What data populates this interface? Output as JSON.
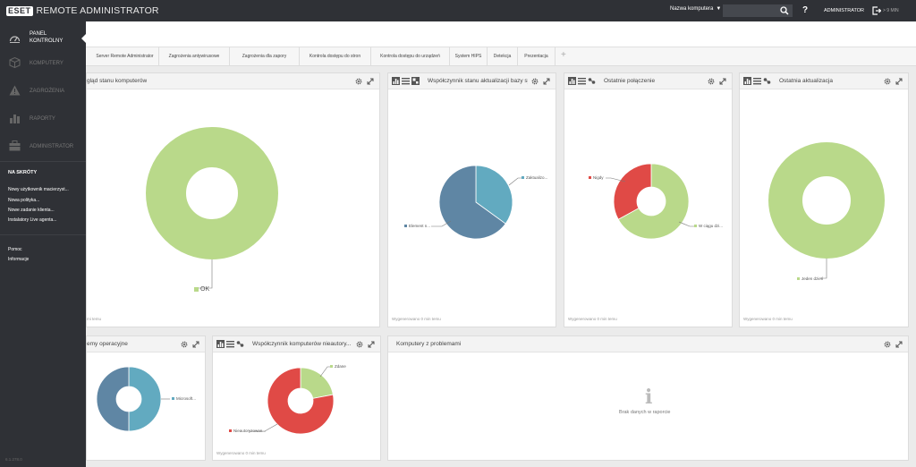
{
  "app": {
    "logo_text": "eset",
    "title": "REMOTE ADMINISTRATOR",
    "computer_select": "Nazwa komputera",
    "user": "ADMINISTRATOR",
    "logout_time": "> 9 MIN"
  },
  "sidebar": {
    "items": [
      {
        "label": "PANEL KONTROLNY"
      },
      {
        "label": "KOMPUTERY"
      },
      {
        "label": "ZAGROŻENIA"
      },
      {
        "label": "RAPORTY"
      },
      {
        "label": "ADMINISTRATOR"
      }
    ],
    "shortcuts_title": "NA SKRÓTY",
    "shortcuts": [
      "Nowy użytkownik macierzyst...",
      "Nowa polityka...",
      "Nowe zadanie klienta...",
      "Instalatory Live agenta..."
    ],
    "links": [
      "Pomoc",
      "Informacje"
    ],
    "version": "6.1.278.0"
  },
  "tabs": [
    "Server Remote Administrator",
    "Zagrożenia antywirusowe",
    "Zagrożenia dla zapory",
    "Kontrola dostępu do stron",
    "Kontrola dostępu do urządzeń",
    "System HIPS",
    "Detekcja",
    "Prezentacja"
  ],
  "panels": {
    "p1": {
      "title": "gląd stanu komputerów",
      "generated": "mi temu"
    },
    "p2": {
      "title": "Współczynnik stanu aktualizacji bazy sy...",
      "generated": "Wygenerowano 0 min temu"
    },
    "p3": {
      "title": "Ostatnie połączenie",
      "generated": "Wygenerowano 0 min temu"
    },
    "p4": {
      "title": "Ostatnia aktualizacja",
      "generated": "Wygenerowano 0 min temu"
    },
    "p5": {
      "title": "emy operacyjne",
      "generated": ""
    },
    "p6": {
      "title": "Współczynnik komputerów nieautory...",
      "generated": "Wygenerowano 0 min temu"
    },
    "p7": {
      "title": "Komputery z problemami",
      "no_data": "Brak danych w raporcie"
    }
  },
  "chart_data": [
    {
      "type": "pie",
      "donut": true,
      "slices": [
        {
          "label": "OK",
          "value": 100,
          "color": "#b9d98a"
        }
      ]
    },
    {
      "type": "pie",
      "donut": false,
      "slices": [
        {
          "label": "Zaktualizo...",
          "value": 35,
          "color": "#62aac0"
        },
        {
          "label": "Element n...",
          "value": 65,
          "color": "#5f86a4"
        }
      ]
    },
    {
      "type": "pie",
      "donut": true,
      "slices": [
        {
          "label": "W ciągu dzi...",
          "value": 67,
          "color": "#b9d98a"
        },
        {
          "label": "Nigdy",
          "value": 33,
          "color": "#e04a46"
        }
      ]
    },
    {
      "type": "pie",
      "donut": true,
      "slices": [
        {
          "label": "Jeden dzień",
          "value": 100,
          "color": "#b9d98a"
        }
      ]
    },
    {
      "type": "pie",
      "donut": true,
      "slices": [
        {
          "label": "Microsoft...",
          "value": 50,
          "color": "#62aac0"
        },
        {
          "label": "",
          "value": 50,
          "color": "#5f86a4"
        }
      ]
    },
    {
      "type": "pie",
      "donut": true,
      "slices": [
        {
          "label": "Zdane",
          "value": 22,
          "color": "#b9d98a"
        },
        {
          "label": "Nieautoryzowan...",
          "value": 78,
          "color": "#e04a46"
        }
      ]
    }
  ]
}
